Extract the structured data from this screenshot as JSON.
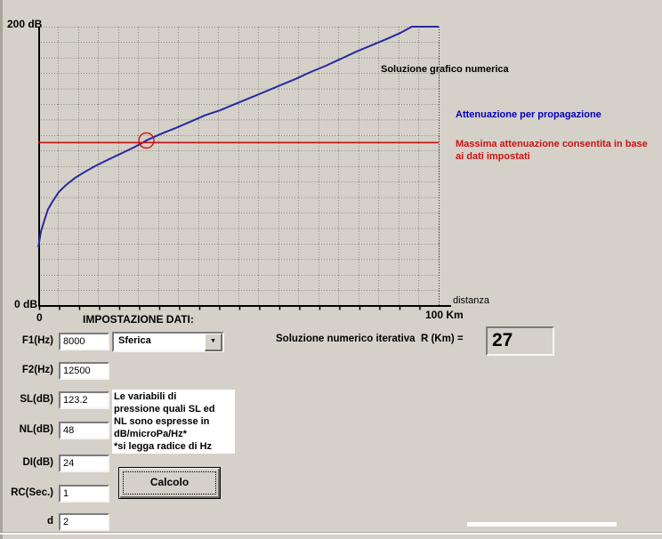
{
  "graph": {
    "y_max_label": "200 dB",
    "y_min_label": "0 dB",
    "x_origin_label": "0",
    "x_max_label": "100 Km",
    "x_axis_label": "distanza",
    "title": "Soluzione grafico numerica",
    "legend_blue": "Attenuazione per propagazione",
    "legend_red": "Massima attenuazione consentita in base ai dati impostati",
    "colors": {
      "curve": "#2828a0",
      "limit": "#cc1111",
      "legend_blue": "#0000bb",
      "legend_red": "#cc1111"
    }
  },
  "chart_data": {
    "type": "line",
    "title": "Soluzione grafico numerica",
    "xlabel": "distanza",
    "x_unit": "Km",
    "ylabel": "dB",
    "xlim": [
      0,
      100
    ],
    "ylim": [
      0,
      200
    ],
    "grid": true,
    "series": [
      {
        "name": "Attenuazione per propagazione",
        "color": "#2828a0",
        "points": [
          [
            0,
            42
          ],
          [
            0.7,
            53.5
          ],
          [
            1.6,
            62
          ],
          [
            2.4,
            69
          ],
          [
            3.6,
            75
          ],
          [
            5.1,
            81.5
          ],
          [
            6.9,
            86.5
          ],
          [
            9.1,
            91.5
          ],
          [
            11.6,
            96
          ],
          [
            14.4,
            100.5
          ],
          [
            17.6,
            105
          ],
          [
            20.9,
            109.5
          ],
          [
            24.2,
            114
          ],
          [
            27.3,
            119
          ],
          [
            30.9,
            123.5
          ],
          [
            34.4,
            127.5
          ],
          [
            38,
            132
          ],
          [
            41.6,
            136.5
          ],
          [
            45.3,
            140
          ],
          [
            49.1,
            144.5
          ],
          [
            52.9,
            149
          ],
          [
            56.7,
            153.5
          ],
          [
            60.4,
            158
          ],
          [
            64.2,
            162.5
          ],
          [
            68,
            167.5
          ],
          [
            71.8,
            172
          ],
          [
            75.6,
            177
          ],
          [
            79.3,
            182
          ],
          [
            83.1,
            186.5
          ],
          [
            86.9,
            191
          ],
          [
            90.4,
            195.5
          ],
          [
            93.3,
            200
          ],
          [
            100,
            200
          ]
        ]
      },
      {
        "name": "Massima attenuazione consentita in base ai dati impostati",
        "color": "#cc1111",
        "points": [
          [
            0,
            117
          ],
          [
            100,
            117
          ]
        ]
      }
    ],
    "marker": {
      "x": 27,
      "y": 118.5
    }
  },
  "form": {
    "heading": "IMPOSTAZIONE DATI:",
    "fields": [
      {
        "label": "F1(Hz)",
        "value": "8000"
      },
      {
        "label": "F2(Hz)",
        "value": "12500"
      },
      {
        "label": "SL(dB)",
        "value": "123.2"
      },
      {
        "label": "NL(dB)",
        "value": "48"
      },
      {
        "label": "DI(dB)",
        "value": "24"
      },
      {
        "label": "RC(Sec.)",
        "value": "1"
      },
      {
        "label": "d",
        "value": "2"
      }
    ],
    "combo": {
      "value": "Sferica",
      "arrow_icon": "▼"
    },
    "note_lines": [
      "Le variabili di",
      "pressione quali SL ed",
      "NL sono espresse in",
      "dB/microPa/Hz*",
      "*si legga radice di Hz"
    ],
    "calc_button": "Calcolo"
  },
  "solution": {
    "label": "Soluzione numerico iterativa  R (Km) =",
    "value": "27"
  }
}
